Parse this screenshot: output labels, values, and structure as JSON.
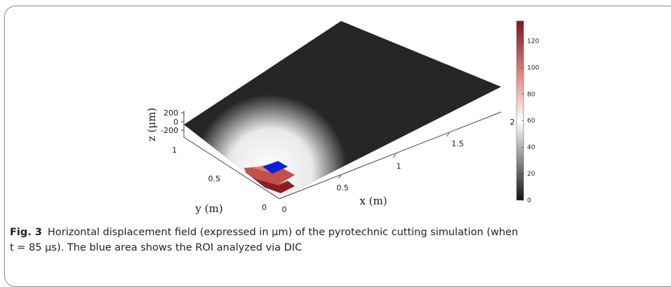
{
  "figure": {
    "z_axis": {
      "label": "z (μm)",
      "ticks": [
        "200",
        "0",
        "-200"
      ]
    },
    "y_axis": {
      "label": "y (m)",
      "ticks": [
        "1",
        "0.5",
        "0"
      ]
    },
    "x_axis": {
      "label": "x (m)",
      "ticks": [
        "0",
        "0.5",
        "1",
        "1.5",
        "2"
      ]
    },
    "colorbar": {
      "ticks": [
        "0",
        "20",
        "40",
        "60",
        "80",
        "100",
        "120"
      ],
      "min": 0,
      "max": 135,
      "colors": {
        "low": "#141414",
        "mid": "#ffffff",
        "high": "#7a1422"
      }
    },
    "roi_color": "#0a22e0"
  },
  "caption": {
    "label": "Fig. 3",
    "text": "Horizontal displacement field (expressed in μm) of the pyrotechnic cutting simulation (when",
    "text2": "t = 85 μs). The blue area shows the ROI analyzed via DIC"
  }
}
